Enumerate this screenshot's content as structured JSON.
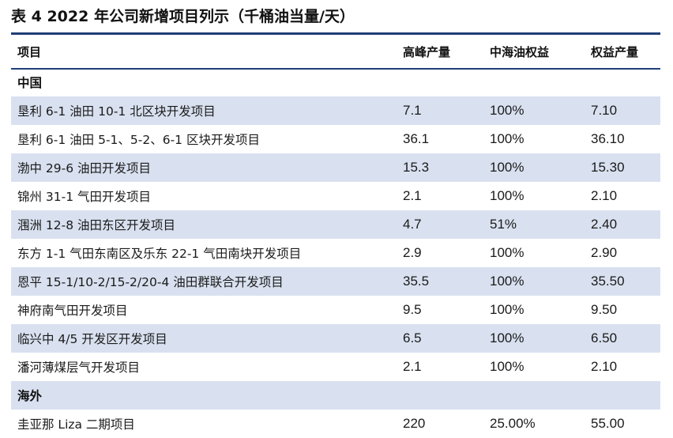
{
  "title": "表 4  2022 年公司新增项目列示（千桶油当量/天）",
  "headers": [
    "项目",
    "高峰产量",
    "中海油权益",
    "权益产量"
  ],
  "sections": [
    {
      "name": "中国",
      "rows": [
        {
          "project": "垦利 6-1 油田 10-1 北区块开发项目",
          "peak": "7.1",
          "share": "100%",
          "equity": "7.10"
        },
        {
          "project": "垦利 6-1 油田 5-1、5-2、6-1 区块开发项目",
          "peak": "36.1",
          "share": "100%",
          "equity": "36.10"
        },
        {
          "project": "渤中 29-6 油田开发项目",
          "peak": "15.3",
          "share": "100%",
          "equity": "15.30"
        },
        {
          "project": "锦州 31-1 气田开发项目",
          "peak": "2.1",
          "share": "100%",
          "equity": "2.10"
        },
        {
          "project": "涠洲 12-8 油田东区开发项目",
          "peak": "4.7",
          "share": "51%",
          "equity": "2.40"
        },
        {
          "project": "东方 1-1 气田东南区及乐东 22-1 气田南块开发项目",
          "peak": "2.9",
          "share": "100%",
          "equity": "2.90"
        },
        {
          "project": "恩平 15-1/10-2/15-2/20-4 油田群联合开发项目",
          "peak": "35.5",
          "share": "100%",
          "equity": "35.50"
        },
        {
          "project": "神府南气田开发项目",
          "peak": "9.5",
          "share": "100%",
          "equity": "9.50"
        },
        {
          "project": "临兴中 4/5 开发区开发项目",
          "peak": "6.5",
          "share": "100%",
          "equity": "6.50"
        },
        {
          "project": "潘河薄煤层气开发项目",
          "peak": "2.1",
          "share": "100%",
          "equity": "2.10"
        }
      ]
    },
    {
      "name": "海外",
      "rows": [
        {
          "project": "圭亚那 Liza 二期项目",
          "peak": "220",
          "share": "25.00%",
          "equity": "55.00"
        }
      ]
    }
  ],
  "colors": {
    "header_rule": "#1f3f77",
    "row_shade": "#d9e1f0"
  }
}
